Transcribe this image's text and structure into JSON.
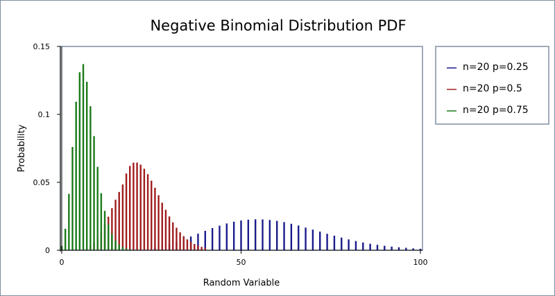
{
  "chart_data": {
    "type": "bar",
    "title": "Negative Binomial Distribution PDF",
    "xlabel": "Random Variable",
    "ylabel": "Probability",
    "xlim": [
      0,
      100
    ],
    "ylim": [
      0,
      0.15
    ],
    "x_ticks": [
      "0",
      "50",
      "100"
    ],
    "y_ticks": [
      "0",
      "0.05",
      "0.1",
      "0.15"
    ],
    "legend_position": "right",
    "grid": false,
    "series": [
      {
        "name": "n=20 p=0.25",
        "color": "#1a1a8c",
        "x": [
          26,
          28,
          30,
          32,
          34,
          36,
          38,
          40,
          42,
          44,
          46,
          48,
          50,
          52,
          54,
          56,
          58,
          60,
          62,
          64,
          66,
          68,
          70,
          72,
          74,
          76,
          78,
          80,
          82,
          84,
          86,
          88,
          90,
          92,
          94,
          96,
          98,
          100
        ],
        "values": [
          0.0021,
          0.0032,
          0.0046,
          0.0062,
          0.0081,
          0.0101,
          0.0122,
          0.0143,
          0.0163,
          0.0181,
          0.0197,
          0.021,
          0.0219,
          0.0225,
          0.0228,
          0.0227,
          0.0223,
          0.0216,
          0.0207,
          0.0195,
          0.0182,
          0.0167,
          0.0152,
          0.0137,
          0.0121,
          0.0107,
          0.0093,
          0.008,
          0.0068,
          0.0057,
          0.0048,
          0.004,
          0.0033,
          0.0027,
          0.0022,
          0.0018,
          0.0014,
          0.0011
        ]
      },
      {
        "name": "n=20 p=0.5",
        "color": "#a01c1c",
        "x": [
          4,
          5,
          6,
          7,
          8,
          9,
          10,
          11,
          12,
          13,
          14,
          15,
          16,
          17,
          18,
          19,
          20,
          21,
          22,
          23,
          24,
          25,
          26,
          27,
          28,
          29,
          30,
          31,
          32,
          33,
          34,
          35,
          36,
          37,
          38,
          39,
          40
        ],
        "values": [
          0.0001,
          0.0003,
          0.0008,
          0.0017,
          0.0032,
          0.0056,
          0.0089,
          0.0134,
          0.0187,
          0.0247,
          0.031,
          0.0372,
          0.0429,
          0.0484,
          0.0565,
          0.062,
          0.0645,
          0.0645,
          0.063,
          0.06,
          0.056,
          0.0512,
          0.046,
          0.0405,
          0.035,
          0.0298,
          0.0249,
          0.0205,
          0.0166,
          0.0132,
          0.0104,
          0.008,
          0.0061,
          0.0046,
          0.0034,
          0.0025,
          0.0018
        ]
      },
      {
        "name": "n=20 p=0.75",
        "color": "#1a7a1a",
        "x": [
          0,
          1,
          2,
          3,
          4,
          5,
          6,
          7,
          8,
          9,
          10,
          11,
          12,
          13,
          14,
          15,
          16,
          17,
          18,
          19,
          20
        ],
        "values": [
          0.0032,
          0.0158,
          0.0415,
          0.076,
          0.1093,
          0.131,
          0.137,
          0.124,
          0.106,
          0.084,
          0.0614,
          0.042,
          0.029,
          0.019,
          0.012,
          0.0072,
          0.0042,
          0.0024,
          0.0013,
          0.0007,
          0.0004
        ]
      }
    ]
  }
}
